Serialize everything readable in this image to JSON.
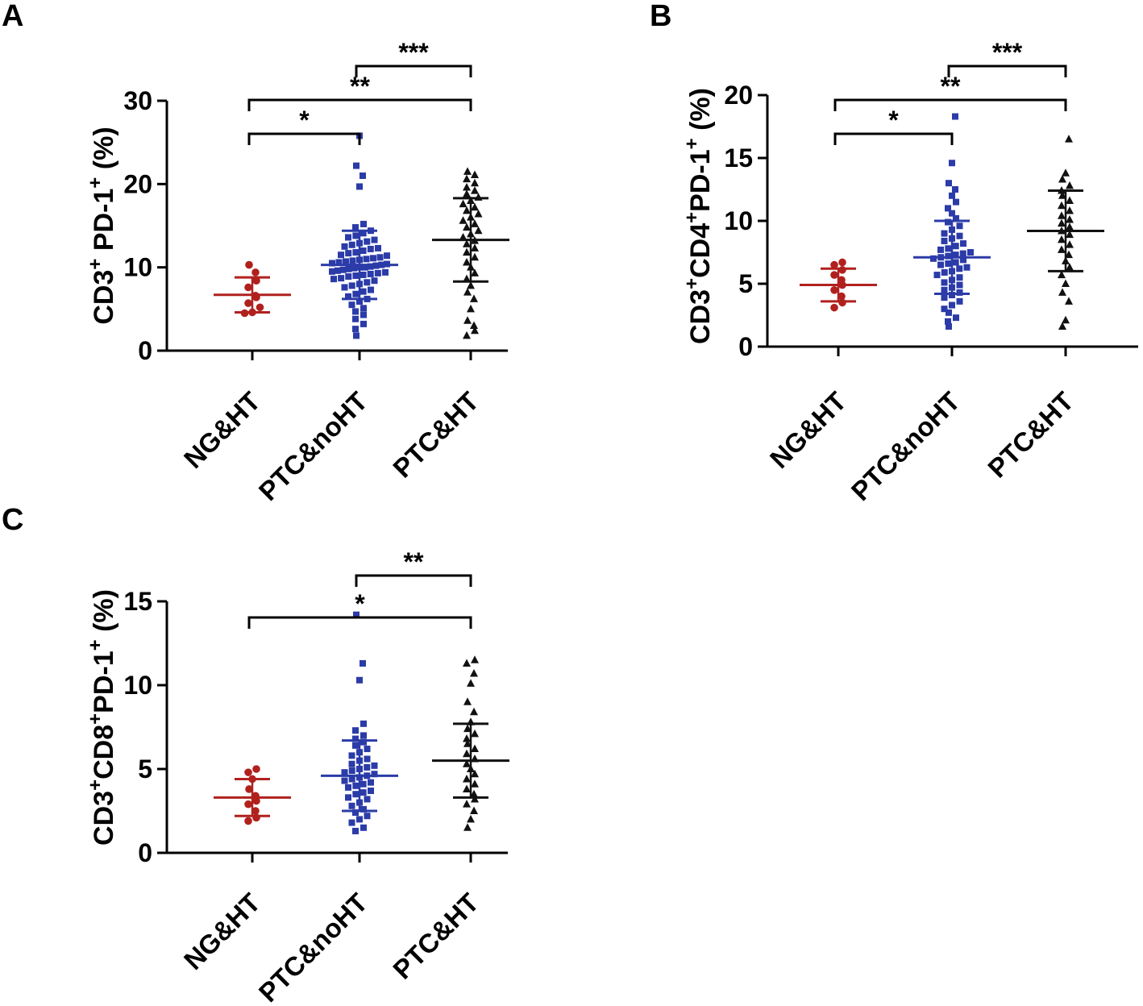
{
  "colors": {
    "NG&HT": "#b0211e",
    "PTC&noHT": "#2b3ba8",
    "PTC&HT": "#111111",
    "axis": "#000000"
  },
  "chart_data": [
    {
      "panel_label": "A",
      "type": "scatter",
      "plot_style": "dot-plot-mean-sd",
      "ylabel_parts": [
        "CD3",
        "+",
        "  PD-1",
        "+",
        " (%)"
      ],
      "categories": [
        "NG&HT",
        "PTC&noHT",
        "PTC&HT"
      ],
      "yticks": [
        0,
        10,
        20,
        30
      ],
      "ylim": [
        0,
        30
      ],
      "series": [
        {
          "category": "NG&HT",
          "marker": "circle",
          "values": [
            4.5,
            4.6,
            5.2,
            5.7,
            6.4,
            6.6,
            7.6,
            8.4,
            9.4,
            10.3
          ],
          "mean": 6.7,
          "sd": 2.1
        },
        {
          "category": "PTC&noHT",
          "marker": "square",
          "values": [
            1.8,
            2.6,
            3.2,
            3.8,
            4.3,
            4.7,
            5.1,
            5.5,
            5.9,
            6.2,
            6.5,
            6.8,
            7.1,
            7.3,
            7.6,
            7.8,
            8.0,
            8.2,
            8.4,
            8.6,
            8.7,
            8.9,
            9.0,
            9.1,
            9.2,
            9.3,
            9.4,
            9.5,
            9.6,
            9.7,
            9.8,
            9.9,
            10.0,
            10.0,
            10.1,
            10.2,
            10.3,
            10.4,
            10.5,
            10.6,
            10.7,
            10.8,
            10.9,
            11.0,
            11.1,
            11.2,
            11.4,
            11.5,
            11.7,
            11.8,
            12.0,
            12.2,
            12.3,
            12.5,
            12.7,
            12.9,
            13.1,
            13.3,
            13.6,
            13.8,
            14.1,
            14.4,
            14.8,
            15.2,
            19.7,
            21.0,
            22.2,
            25.8
          ],
          "mean": 10.3,
          "sd": 4.1
        },
        {
          "category": "PTC&HT",
          "marker": "triangle",
          "values": [
            1.8,
            2.4,
            3.0,
            3.6,
            5.0,
            6.2,
            7.0,
            7.8,
            8.6,
            9.3,
            10.0,
            10.6,
            11.2,
            11.8,
            12.3,
            12.8,
            13.2,
            13.6,
            14.0,
            14.4,
            14.8,
            15.2,
            15.6,
            16.0,
            16.4,
            16.8,
            17.2,
            17.6,
            18.0,
            18.4,
            18.8,
            19.2,
            19.6,
            20.1,
            20.6,
            21.1,
            21.5
          ],
          "mean": 13.3,
          "sd": 5.0
        }
      ],
      "significance": [
        {
          "from": "NG&HT",
          "to": "PTC&noHT",
          "label": "*"
        },
        {
          "from": "NG&HT",
          "to": "PTC&HT",
          "label": "**"
        },
        {
          "from": "PTC&noHT",
          "to": "PTC&HT",
          "label": "***"
        }
      ]
    },
    {
      "panel_label": "B",
      "type": "scatter",
      "plot_style": "dot-plot-mean-sd",
      "ylabel_parts": [
        "CD3",
        "+",
        "CD4",
        "+",
        "PD-1",
        "+",
        " (%)"
      ],
      "categories": [
        "NG&HT",
        "PTC&noHT",
        "PTC&HT"
      ],
      "yticks": [
        0,
        5,
        10,
        15,
        20
      ],
      "ylim": [
        0,
        20
      ],
      "series": [
        {
          "category": "NG&HT",
          "marker": "circle",
          "values": [
            3.1,
            3.5,
            4.0,
            4.5,
            4.9,
            5.3,
            5.7,
            6.1,
            6.5,
            6.7
          ],
          "mean": 4.9,
          "sd": 1.3
        },
        {
          "category": "PTC&noHT",
          "marker": "square",
          "values": [
            1.6,
            2.0,
            2.3,
            2.7,
            3.0,
            3.3,
            3.6,
            3.9,
            4.1,
            4.3,
            4.5,
            4.7,
            4.9,
            5.1,
            5.3,
            5.5,
            5.7,
            5.9,
            6.0,
            6.2,
            6.3,
            6.5,
            6.6,
            6.7,
            6.9,
            7.0,
            7.1,
            7.2,
            7.3,
            7.4,
            7.5,
            7.7,
            7.8,
            8.0,
            8.2,
            8.4,
            8.6,
            8.8,
            9.0,
            9.3,
            9.6,
            9.9,
            10.2,
            10.6,
            11.0,
            11.5,
            12.0,
            12.5,
            13.0,
            14.6,
            18.3
          ],
          "mean": 7.1,
          "sd": 2.9
        },
        {
          "category": "PTC&HT",
          "marker": "triangle",
          "values": [
            1.6,
            2.1,
            3.6,
            4.3,
            5.0,
            5.7,
            6.3,
            6.8,
            7.3,
            7.7,
            8.1,
            8.5,
            8.9,
            9.2,
            9.5,
            9.8,
            10.1,
            10.4,
            10.8,
            11.2,
            11.6,
            12.0,
            12.4,
            12.8,
            13.3,
            13.8,
            16.5
          ],
          "mean": 9.2,
          "sd": 3.2
        }
      ],
      "significance": [
        {
          "from": "NG&HT",
          "to": "PTC&noHT",
          "label": "*"
        },
        {
          "from": "NG&HT",
          "to": "PTC&HT",
          "label": "**"
        },
        {
          "from": "PTC&noHT",
          "to": "PTC&HT",
          "label": "***"
        }
      ]
    },
    {
      "panel_label": "C",
      "type": "scatter",
      "plot_style": "dot-plot-mean-sd",
      "ylabel_parts": [
        "CD3",
        "+",
        "CD8",
        "+",
        "PD-1",
        "+",
        " (%)"
      ],
      "categories": [
        "NG&HT",
        "PTC&noHT",
        "PTC&HT"
      ],
      "yticks": [
        0,
        5,
        10,
        15
      ],
      "ylim": [
        0,
        15
      ],
      "series": [
        {
          "category": "NG&HT",
          "marker": "circle",
          "values": [
            1.9,
            2.1,
            2.5,
            2.9,
            3.1,
            3.4,
            3.8,
            4.4,
            4.8,
            5.0
          ],
          "mean": 3.3,
          "sd": 1.1
        },
        {
          "category": "PTC&noHT",
          "marker": "square",
          "values": [
            1.3,
            1.5,
            1.8,
            2.0,
            2.2,
            2.4,
            2.6,
            2.8,
            3.0,
            3.2,
            3.3,
            3.5,
            3.6,
            3.7,
            3.9,
            4.0,
            4.1,
            4.2,
            4.3,
            4.4,
            4.5,
            4.6,
            4.7,
            4.8,
            4.9,
            5.0,
            5.1,
            5.2,
            5.3,
            5.5,
            5.6,
            5.8,
            6.0,
            6.2,
            6.4,
            6.6,
            6.8,
            7.0,
            7.3,
            7.7,
            10.3,
            11.3,
            14.2
          ],
          "mean": 4.6,
          "sd": 2.1
        },
        {
          "category": "PTC&HT",
          "marker": "triangle",
          "values": [
            1.5,
            2.0,
            2.5,
            2.9,
            3.2,
            3.5,
            3.8,
            4.1,
            4.4,
            4.7,
            5.0,
            5.3,
            5.6,
            5.9,
            6.2,
            6.5,
            6.8,
            7.1,
            7.4,
            7.8,
            8.4,
            9.0,
            10.1,
            10.7,
            11.3,
            11.5
          ],
          "mean": 5.5,
          "sd": 2.2
        }
      ],
      "significance": [
        {
          "from": "NG&HT",
          "to": "PTC&HT",
          "label": "*"
        },
        {
          "from": "PTC&noHT",
          "to": "PTC&HT",
          "label": "**"
        }
      ]
    }
  ]
}
